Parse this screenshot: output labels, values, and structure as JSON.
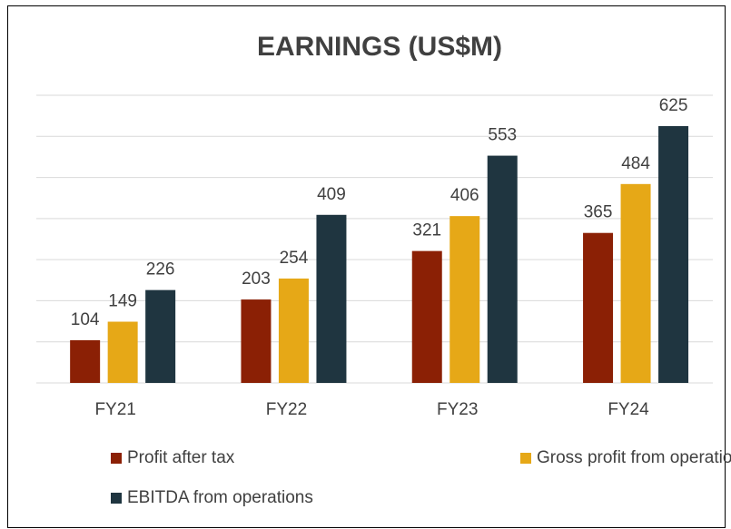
{
  "chart_data": {
    "type": "bar",
    "title": "EARNINGS (US$M)",
    "categories": [
      "FY21",
      "FY22",
      "FY23",
      "FY24"
    ],
    "series": [
      {
        "name": "Profit after tax",
        "color": "#8b2005",
        "values": [
          104,
          203,
          321,
          365
        ]
      },
      {
        "name": "Gross profit from operations",
        "color": "#e6a817",
        "values": [
          149,
          254,
          406,
          484
        ]
      },
      {
        "name": "EBITDA from operations",
        "color": "#1f3540",
        "values": [
          226,
          409,
          553,
          625
        ]
      }
    ],
    "ylim": [
      0,
      700
    ],
    "yticks": [
      0,
      100,
      200,
      300,
      400,
      500,
      600,
      700
    ],
    "grid": true
  }
}
